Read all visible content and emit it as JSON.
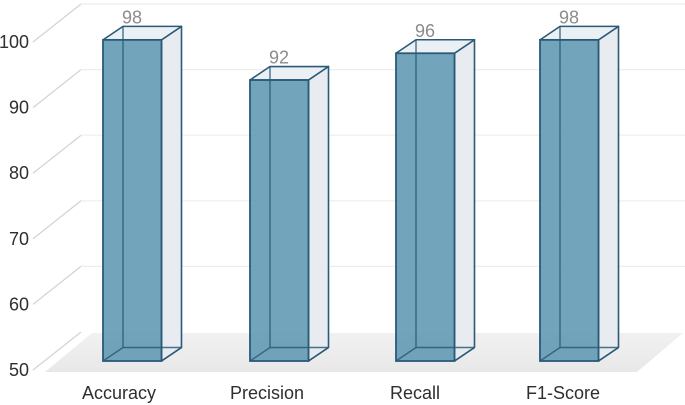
{
  "chart_data": {
    "type": "bar",
    "style": "3d-column",
    "title": "",
    "xlabel": "",
    "ylabel": "",
    "categories": [
      "Accuracy",
      "Precision",
      "Recall",
      "F1-Score"
    ],
    "values": [
      98,
      92,
      96,
      98
    ],
    "data_labels": [
      "98",
      "92",
      "96",
      "98"
    ],
    "ylim": [
      50,
      100
    ],
    "y_ticks": [
      100,
      90,
      80,
      70,
      60,
      50
    ],
    "grid": true,
    "legend": "none"
  },
  "colors": {
    "background": "#FFFFFF",
    "bar_front": "#5E97B2",
    "bar_side": "#E7EBEF",
    "bar_top": "#EAEFF3",
    "bar_outline": "#2A5A78",
    "floor_back": "#F1F1F1",
    "floor_front": "#E8E8E8",
    "gridline": "#EDEDED",
    "axis_tick_line": "#D4D4D4",
    "data_label": "#8C8C8C",
    "axis_text": "#2F2F2F"
  }
}
